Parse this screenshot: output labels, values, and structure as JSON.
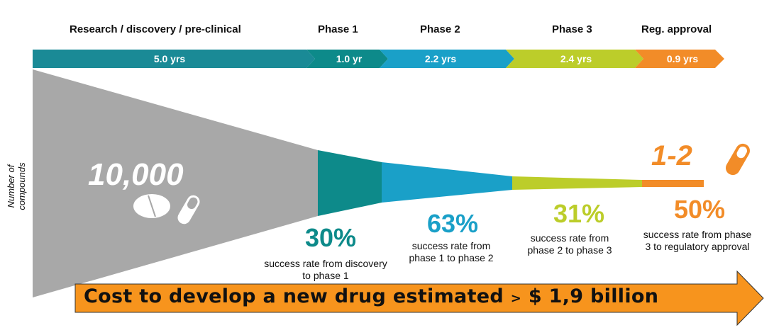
{
  "colors": {
    "research": "#1a8a96",
    "phase1": "#0d8a8a",
    "phase2": "#1aa0c8",
    "phase3": "#bccd2a",
    "approval": "#f28c28",
    "funnel": "#a8a8a8",
    "cost_arrow": "#f7941d"
  },
  "phases": [
    {
      "title": "Research / discovery / pre-clinical",
      "duration": "5.0 yrs"
    },
    {
      "title": "Phase 1",
      "duration": "1.0 yr"
    },
    {
      "title": "Phase 2",
      "duration": "2.2 yrs"
    },
    {
      "title": "Phase 3",
      "duration": "2.4 yrs"
    },
    {
      "title": "Reg. approval",
      "duration": "0.9 yrs"
    }
  ],
  "y_axis_label": "Number of compounds",
  "start_count": "10,000",
  "end_count": "1-2",
  "success_rates": [
    {
      "percent": "30%",
      "line1": "success rate from discovery",
      "line2": "to phase 1"
    },
    {
      "percent": "63%",
      "line1": "success rate from",
      "line2": "phase 1 to phase 2"
    },
    {
      "percent": "31%",
      "line1": "success rate from",
      "line2": "phase 2 to phase 3"
    },
    {
      "percent": "50%",
      "line1": "success rate from phase",
      "line2": "3 to regulatory approval"
    }
  ],
  "cost": {
    "text": "Cost to develop a new drug estimated",
    "symbol": ">",
    "amount": "$ 1,9 billion"
  }
}
